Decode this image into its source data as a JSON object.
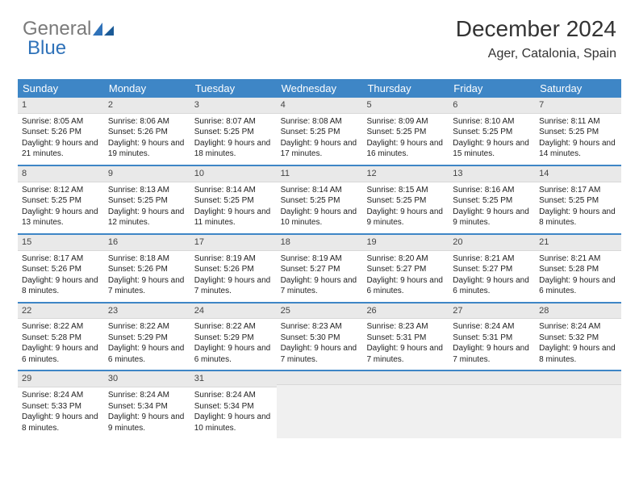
{
  "logo": {
    "part1": "General",
    "part2": "Blue"
  },
  "title": "December 2024",
  "location": "Ager, Catalonia, Spain",
  "colors": {
    "header_bg": "#3e86c6",
    "header_text": "#ffffff",
    "daynum_bg": "#e9e9e9",
    "border": "#3e86c6",
    "logo_gray": "#7a7a7a",
    "logo_blue": "#2f72b9",
    "page_bg": "#ffffff",
    "text": "#222222"
  },
  "typography": {
    "title_fontsize": 28,
    "location_fontsize": 16,
    "header_fontsize": 13,
    "cell_fontsize": 10,
    "daynum_fontsize": 11
  },
  "day_names": [
    "Sunday",
    "Monday",
    "Tuesday",
    "Wednesday",
    "Thursday",
    "Friday",
    "Saturday"
  ],
  "weeks": [
    [
      {
        "n": "1",
        "sr": "Sunrise: 8:05 AM",
        "ss": "Sunset: 5:26 PM",
        "dl": "Daylight: 9 hours and 21 minutes."
      },
      {
        "n": "2",
        "sr": "Sunrise: 8:06 AM",
        "ss": "Sunset: 5:26 PM",
        "dl": "Daylight: 9 hours and 19 minutes."
      },
      {
        "n": "3",
        "sr": "Sunrise: 8:07 AM",
        "ss": "Sunset: 5:25 PM",
        "dl": "Daylight: 9 hours and 18 minutes."
      },
      {
        "n": "4",
        "sr": "Sunrise: 8:08 AM",
        "ss": "Sunset: 5:25 PM",
        "dl": "Daylight: 9 hours and 17 minutes."
      },
      {
        "n": "5",
        "sr": "Sunrise: 8:09 AM",
        "ss": "Sunset: 5:25 PM",
        "dl": "Daylight: 9 hours and 16 minutes."
      },
      {
        "n": "6",
        "sr": "Sunrise: 8:10 AM",
        "ss": "Sunset: 5:25 PM",
        "dl": "Daylight: 9 hours and 15 minutes."
      },
      {
        "n": "7",
        "sr": "Sunrise: 8:11 AM",
        "ss": "Sunset: 5:25 PM",
        "dl": "Daylight: 9 hours and 14 minutes."
      }
    ],
    [
      {
        "n": "8",
        "sr": "Sunrise: 8:12 AM",
        "ss": "Sunset: 5:25 PM",
        "dl": "Daylight: 9 hours and 13 minutes."
      },
      {
        "n": "9",
        "sr": "Sunrise: 8:13 AM",
        "ss": "Sunset: 5:25 PM",
        "dl": "Daylight: 9 hours and 12 minutes."
      },
      {
        "n": "10",
        "sr": "Sunrise: 8:14 AM",
        "ss": "Sunset: 5:25 PM",
        "dl": "Daylight: 9 hours and 11 minutes."
      },
      {
        "n": "11",
        "sr": "Sunrise: 8:14 AM",
        "ss": "Sunset: 5:25 PM",
        "dl": "Daylight: 9 hours and 10 minutes."
      },
      {
        "n": "12",
        "sr": "Sunrise: 8:15 AM",
        "ss": "Sunset: 5:25 PM",
        "dl": "Daylight: 9 hours and 9 minutes."
      },
      {
        "n": "13",
        "sr": "Sunrise: 8:16 AM",
        "ss": "Sunset: 5:25 PM",
        "dl": "Daylight: 9 hours and 9 minutes."
      },
      {
        "n": "14",
        "sr": "Sunrise: 8:17 AM",
        "ss": "Sunset: 5:25 PM",
        "dl": "Daylight: 9 hours and 8 minutes."
      }
    ],
    [
      {
        "n": "15",
        "sr": "Sunrise: 8:17 AM",
        "ss": "Sunset: 5:26 PM",
        "dl": "Daylight: 9 hours and 8 minutes."
      },
      {
        "n": "16",
        "sr": "Sunrise: 8:18 AM",
        "ss": "Sunset: 5:26 PM",
        "dl": "Daylight: 9 hours and 7 minutes."
      },
      {
        "n": "17",
        "sr": "Sunrise: 8:19 AM",
        "ss": "Sunset: 5:26 PM",
        "dl": "Daylight: 9 hours and 7 minutes."
      },
      {
        "n": "18",
        "sr": "Sunrise: 8:19 AM",
        "ss": "Sunset: 5:27 PM",
        "dl": "Daylight: 9 hours and 7 minutes."
      },
      {
        "n": "19",
        "sr": "Sunrise: 8:20 AM",
        "ss": "Sunset: 5:27 PM",
        "dl": "Daylight: 9 hours and 6 minutes."
      },
      {
        "n": "20",
        "sr": "Sunrise: 8:21 AM",
        "ss": "Sunset: 5:27 PM",
        "dl": "Daylight: 9 hours and 6 minutes."
      },
      {
        "n": "21",
        "sr": "Sunrise: 8:21 AM",
        "ss": "Sunset: 5:28 PM",
        "dl": "Daylight: 9 hours and 6 minutes."
      }
    ],
    [
      {
        "n": "22",
        "sr": "Sunrise: 8:22 AM",
        "ss": "Sunset: 5:28 PM",
        "dl": "Daylight: 9 hours and 6 minutes."
      },
      {
        "n": "23",
        "sr": "Sunrise: 8:22 AM",
        "ss": "Sunset: 5:29 PM",
        "dl": "Daylight: 9 hours and 6 minutes."
      },
      {
        "n": "24",
        "sr": "Sunrise: 8:22 AM",
        "ss": "Sunset: 5:29 PM",
        "dl": "Daylight: 9 hours and 6 minutes."
      },
      {
        "n": "25",
        "sr": "Sunrise: 8:23 AM",
        "ss": "Sunset: 5:30 PM",
        "dl": "Daylight: 9 hours and 7 minutes."
      },
      {
        "n": "26",
        "sr": "Sunrise: 8:23 AM",
        "ss": "Sunset: 5:31 PM",
        "dl": "Daylight: 9 hours and 7 minutes."
      },
      {
        "n": "27",
        "sr": "Sunrise: 8:24 AM",
        "ss": "Sunset: 5:31 PM",
        "dl": "Daylight: 9 hours and 7 minutes."
      },
      {
        "n": "28",
        "sr": "Sunrise: 8:24 AM",
        "ss": "Sunset: 5:32 PM",
        "dl": "Daylight: 9 hours and 8 minutes."
      }
    ],
    [
      {
        "n": "29",
        "sr": "Sunrise: 8:24 AM",
        "ss": "Sunset: 5:33 PM",
        "dl": "Daylight: 9 hours and 8 minutes."
      },
      {
        "n": "30",
        "sr": "Sunrise: 8:24 AM",
        "ss": "Sunset: 5:34 PM",
        "dl": "Daylight: 9 hours and 9 minutes."
      },
      {
        "n": "31",
        "sr": "Sunrise: 8:24 AM",
        "ss": "Sunset: 5:34 PM",
        "dl": "Daylight: 9 hours and 10 minutes."
      },
      null,
      null,
      null,
      null
    ]
  ]
}
